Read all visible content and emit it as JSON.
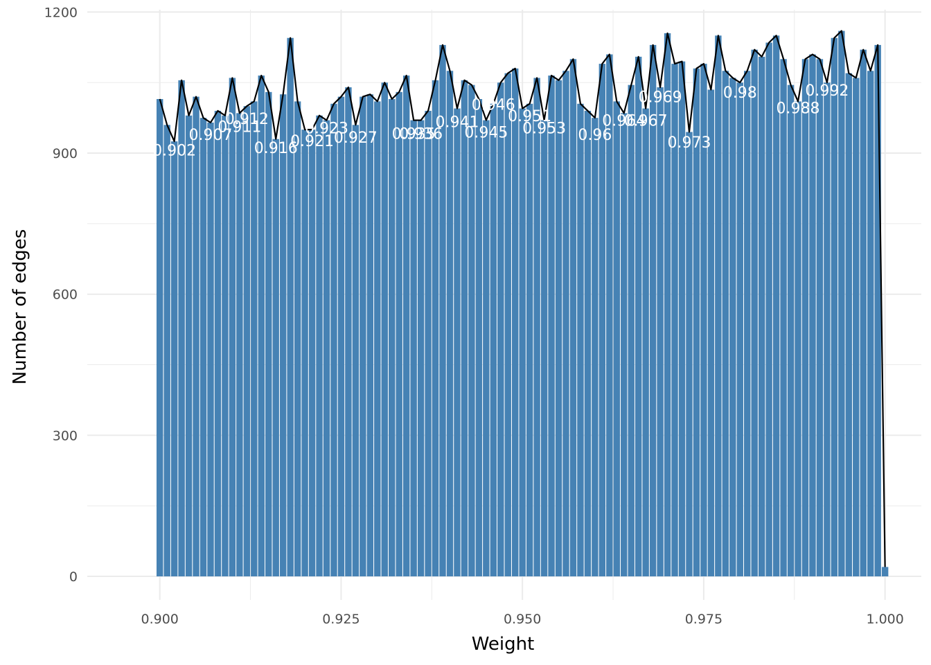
{
  "chart_data": {
    "type": "bar",
    "xlabel": "Weight",
    "ylabel": "Number of edges",
    "xlim": [
      0.89,
      1.005
    ],
    "ylim": [
      -50,
      1205
    ],
    "xticks": [
      0.9,
      0.925,
      0.95,
      0.975,
      1.0
    ],
    "xtick_labels": [
      "0.900",
      "0.925",
      "0.950",
      "0.975",
      "1.000"
    ],
    "yticks": [
      0,
      300,
      600,
      900,
      1200
    ],
    "ytick_labels": [
      "0",
      "300",
      "600",
      "900",
      "1200"
    ],
    "grid": true,
    "bar_width": 0.0009,
    "x": [
      0.9,
      0.901,
      0.902,
      0.903,
      0.904,
      0.905,
      0.906,
      0.907,
      0.908,
      0.909,
      0.91,
      0.911,
      0.912,
      0.913,
      0.914,
      0.915,
      0.916,
      0.917,
      0.918,
      0.919,
      0.92,
      0.921,
      0.922,
      0.923,
      0.924,
      0.925,
      0.926,
      0.927,
      0.928,
      0.929,
      0.93,
      0.931,
      0.932,
      0.933,
      0.934,
      0.935,
      0.936,
      0.937,
      0.938,
      0.939,
      0.94,
      0.941,
      0.942,
      0.943,
      0.944,
      0.945,
      0.946,
      0.947,
      0.948,
      0.949,
      0.95,
      0.951,
      0.952,
      0.953,
      0.954,
      0.955,
      0.956,
      0.957,
      0.958,
      0.959,
      0.96,
      0.961,
      0.962,
      0.963,
      0.964,
      0.965,
      0.966,
      0.967,
      0.968,
      0.969,
      0.97,
      0.971,
      0.972,
      0.973,
      0.974,
      0.975,
      0.976,
      0.977,
      0.978,
      0.979,
      0.98,
      0.981,
      0.982,
      0.983,
      0.984,
      0.985,
      0.986,
      0.987,
      0.988,
      0.989,
      0.99,
      0.991,
      0.992,
      0.993,
      0.994,
      0.995,
      0.996,
      0.997,
      0.998,
      0.999,
      1.0
    ],
    "values": [
      1015,
      960,
      925,
      1055,
      980,
      1020,
      975,
      965,
      990,
      980,
      1060,
      985,
      1000,
      1010,
      1065,
      1030,
      930,
      1025,
      1145,
      1010,
      950,
      950,
      980,
      970,
      1005,
      1020,
      1040,
      960,
      1020,
      1025,
      1010,
      1050,
      1015,
      1030,
      1065,
      970,
      970,
      990,
      1055,
      1130,
      1075,
      995,
      1055,
      1045,
      1015,
      970,
      1005,
      1050,
      1070,
      1080,
      995,
      1005,
      1060,
      970,
      1065,
      1055,
      1075,
      1100,
      1005,
      990,
      975,
      1090,
      1110,
      1010,
      985,
      1045,
      1105,
      995,
      1130,
      1040,
      1155,
      1090,
      1095,
      945,
      1080,
      1090,
      1035,
      1150,
      1075,
      1060,
      1050,
      1075,
      1120,
      1105,
      1135,
      1150,
      1100,
      1045,
      1010,
      1100,
      1110,
      1100,
      1050,
      1145,
      1160,
      1070,
      1060,
      1120,
      1075,
      1130,
      20
    ],
    "series": [],
    "line": {
      "color": "#000000"
    },
    "labels": [
      {
        "text": "0.902",
        "x": 0.902,
        "y": 895
      },
      {
        "text": "0.907",
        "x": 0.907,
        "y": 928
      },
      {
        "text": "0.911",
        "x": 0.911,
        "y": 945
      },
      {
        "text": "0.912",
        "x": 0.912,
        "y": 962
      },
      {
        "text": "0.916",
        "x": 0.916,
        "y": 900
      },
      {
        "text": "0.921",
        "x": 0.921,
        "y": 915
      },
      {
        "text": "0.923",
        "x": 0.923,
        "y": 942
      },
      {
        "text": "0.927",
        "x": 0.927,
        "y": 922
      },
      {
        "text": "0.935",
        "x": 0.935,
        "y": 930
      },
      {
        "text": "0.936",
        "x": 0.936,
        "y": 930
      },
      {
        "text": "0.941",
        "x": 0.941,
        "y": 955
      },
      {
        "text": "0.945",
        "x": 0.945,
        "y": 933
      },
      {
        "text": "0.946",
        "x": 0.946,
        "y": 992
      },
      {
        "text": "0.951",
        "x": 0.951,
        "y": 968
      },
      {
        "text": "0.953",
        "x": 0.953,
        "y": 942
      },
      {
        "text": "0.96",
        "x": 0.96,
        "y": 928
      },
      {
        "text": "0.964",
        "x": 0.964,
        "y": 958
      },
      {
        "text": "0.967",
        "x": 0.967,
        "y": 958
      },
      {
        "text": "0.969",
        "x": 0.969,
        "y": 1008
      },
      {
        "text": "0.973",
        "x": 0.973,
        "y": 912
      },
      {
        "text": "0.98",
        "x": 0.98,
        "y": 1018
      },
      {
        "text": "0.988",
        "x": 0.988,
        "y": 985
      },
      {
        "text": "0.992",
        "x": 0.992,
        "y": 1022
      }
    ],
    "colors": {
      "bar": "#4682b4",
      "line": "#000000",
      "label": "#ffffff",
      "grid": "#ebebeb",
      "axis_text": "#4d4d4d",
      "axis_title": "#000000"
    }
  }
}
